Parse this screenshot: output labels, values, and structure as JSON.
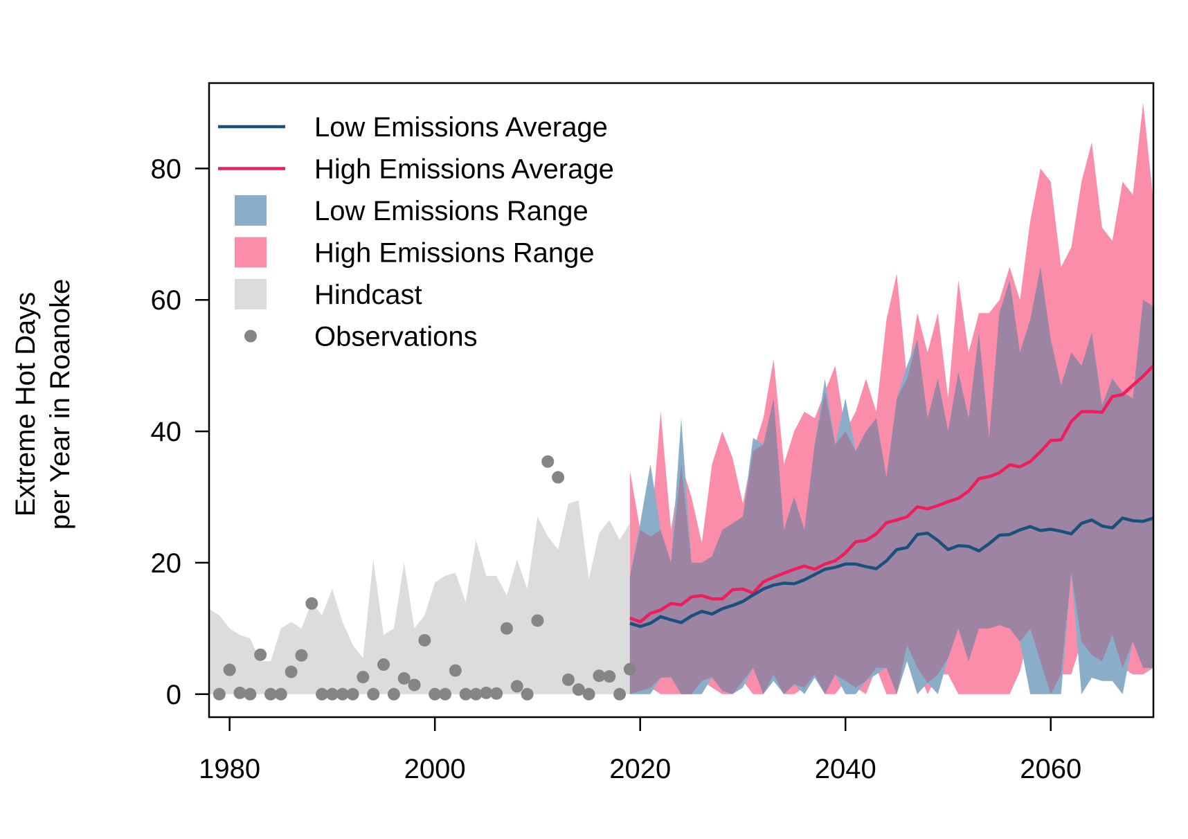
{
  "chart_data": {
    "type": "line",
    "title": "",
    "xlabel": "",
    "ylabel_lines": [
      "Extreme Hot Days",
      "per Year in Roanoke"
    ],
    "xlim": [
      1978,
      2070
    ],
    "ylim": [
      -3.5,
      93
    ],
    "x_ticks": [
      1980,
      2000,
      2020,
      2040,
      2060
    ],
    "x_tick_labels": [
      "1980",
      "2000",
      "2020",
      "2040",
      "2060"
    ],
    "y_ticks": [
      0,
      20,
      40,
      60,
      80
    ],
    "y_tick_labels": [
      "0",
      "20",
      "40",
      "60",
      "80"
    ],
    "grid": false,
    "legend_position": "top-left",
    "colors": {
      "low_average": "#1b4f7c",
      "high_average": "#ef1d5a",
      "low_range": "#8aadc9",
      "high_range": "#fa8eaa",
      "overlap_range": "#9d84a3",
      "hindcast": "#dcdcdc",
      "observations": "#858585"
    },
    "legend": [
      {
        "label": "Low Emissions Average",
        "kind": "line",
        "series": "low_average"
      },
      {
        "label": "High Emissions Average",
        "kind": "line",
        "series": "high_average"
      },
      {
        "label": "Low Emissions Range",
        "kind": "box",
        "series": "low_range"
      },
      {
        "label": "High Emissions Range",
        "kind": "box",
        "series": "high_range"
      },
      {
        "label": "Hindcast",
        "kind": "box",
        "series": "hindcast"
      },
      {
        "label": "Observations",
        "kind": "point",
        "series": "observations"
      }
    ],
    "hindcast": {
      "x": [
        1978,
        1979,
        1980,
        1981,
        1982,
        1983,
        1984,
        1985,
        1986,
        1987,
        1988,
        1989,
        1990,
        1991,
        1992,
        1993,
        1994,
        1995,
        1996,
        1997,
        1998,
        1999,
        2000,
        2001,
        2002,
        2003,
        2004,
        2005,
        2006,
        2007,
        2008,
        2009,
        2010,
        2011,
        2012,
        2013,
        2014,
        2015,
        2016,
        2017,
        2018,
        2019
      ],
      "upper": [
        13,
        12,
        10,
        9,
        8.5,
        5,
        5,
        10,
        11,
        10,
        14,
        12,
        16,
        11,
        7.5,
        5.5,
        20.5,
        9,
        10,
        20,
        10,
        12,
        17,
        18,
        18.5,
        14,
        23.5,
        18,
        18,
        15,
        20.5,
        16,
        27,
        24,
        22,
        29,
        29.5,
        17.5,
        24.5,
        26.5,
        23.5,
        26
      ],
      "lower": [
        0,
        0,
        0,
        0,
        0,
        0,
        0,
        0,
        0,
        0,
        0,
        0,
        0,
        0,
        0,
        0,
        0,
        0,
        0,
        0,
        0,
        0,
        0,
        0,
        0,
        0,
        0,
        0,
        0,
        0,
        0,
        0,
        0,
        0,
        0,
        0,
        0,
        0,
        0,
        0,
        0,
        0
      ]
    },
    "observations": {
      "x": [
        1979,
        1980,
        1981,
        1982,
        1983,
        1984,
        1985,
        1986,
        1987,
        1988,
        1989,
        1990,
        1991,
        1992,
        1993,
        1994,
        1995,
        1996,
        1997,
        1998,
        1999,
        2000,
        2001,
        2002,
        2003,
        2004,
        2005,
        2006,
        2007,
        2008,
        2009,
        2010,
        2011,
        2012,
        2013,
        2014,
        2015,
        2016,
        2017,
        2018,
        2019
      ],
      "y": [
        0,
        3.7,
        0.2,
        0,
        6,
        0,
        0,
        3.4,
        5.9,
        13.8,
        0,
        0,
        0,
        0,
        2.6,
        0,
        4.5,
        0,
        2.4,
        1.4,
        8.2,
        0,
        0,
        3.6,
        0,
        0,
        0.2,
        0.1,
        10,
        1.2,
        0,
        11.2,
        35.4,
        33,
        2.2,
        0.7,
        0,
        2.8,
        2.7,
        0,
        3.8
      ]
    },
    "low_range": {
      "x": [
        2019,
        2020,
        2021,
        2022,
        2023,
        2024,
        2025,
        2026,
        2027,
        2028,
        2029,
        2030,
        2031,
        2032,
        2033,
        2034,
        2035,
        2036,
        2037,
        2038,
        2039,
        2040,
        2041,
        2042,
        2043,
        2044,
        2045,
        2046,
        2047,
        2048,
        2049,
        2050,
        2051,
        2052,
        2053,
        2054,
        2055,
        2056,
        2057,
        2058,
        2059,
        2060,
        2061,
        2062,
        2063,
        2064,
        2065,
        2066,
        2067,
        2068,
        2069,
        2070
      ],
      "upper": [
        18,
        26,
        35,
        25,
        20,
        42,
        20,
        20,
        21,
        25,
        26,
        27,
        39,
        38,
        45,
        25,
        30,
        25,
        38,
        48,
        38,
        45,
        37,
        40,
        42,
        33,
        45,
        50,
        54,
        42,
        48,
        40,
        49,
        42,
        55,
        39,
        58,
        63,
        52,
        57,
        65,
        54,
        47,
        52,
        50,
        55,
        44,
        48,
        46,
        45,
        60,
        59
      ],
      "lower": [
        0,
        0,
        0,
        2.5,
        2.6,
        0,
        0,
        0,
        2.6,
        0.5,
        0,
        1,
        4,
        0,
        2,
        0,
        1.5,
        0,
        2.5,
        0,
        3,
        0,
        0,
        2,
        3,
        4,
        0,
        5,
        0,
        1.7,
        0,
        5.5,
        10,
        5,
        10,
        10,
        10.5,
        10,
        8,
        0,
        0,
        0,
        0,
        18.5,
        0,
        2.5,
        2,
        2,
        0,
        8,
        4,
        4
      ]
    },
    "high_range": {
      "x": [
        2019,
        2020,
        2021,
        2022,
        2023,
        2024,
        2025,
        2026,
        2027,
        2028,
        2029,
        2030,
        2031,
        2032,
        2033,
        2034,
        2035,
        2036,
        2037,
        2038,
        2039,
        2040,
        2041,
        2042,
        2043,
        2044,
        2045,
        2046,
        2047,
        2048,
        2049,
        2050,
        2051,
        2052,
        2053,
        2054,
        2055,
        2056,
        2057,
        2058,
        2059,
        2060,
        2061,
        2062,
        2063,
        2064,
        2065,
        2066,
        2067,
        2068,
        2069,
        2070
      ],
      "upper": [
        34,
        25,
        24,
        43,
        25,
        35,
        30,
        23,
        35,
        40,
        36,
        29,
        37,
        42,
        51,
        35,
        40,
        43,
        42,
        46,
        50,
        40,
        43,
        48,
        43,
        57,
        64,
        48,
        58,
        52,
        58,
        45,
        63,
        52,
        58,
        58,
        60,
        65,
        60,
        72,
        80,
        78,
        65,
        68,
        78,
        84,
        71,
        69,
        78,
        76,
        90,
        75
      ],
      "lower": [
        0,
        0.5,
        1,
        0,
        0,
        0,
        0,
        2,
        1,
        0,
        0,
        2,
        0,
        0,
        3,
        0,
        0,
        1,
        3,
        0,
        0,
        2,
        1,
        0,
        4,
        0,
        0,
        7.5,
        4,
        0,
        3,
        3,
        0,
        0,
        0,
        0,
        0,
        0,
        3.5,
        10,
        5,
        0,
        3,
        3,
        8,
        6,
        5,
        9,
        4,
        3,
        3,
        4
      ]
    },
    "low_average": {
      "x": [
        2019,
        2020,
        2021,
        2022,
        2023,
        2024,
        2025,
        2026,
        2027,
        2028,
        2029,
        2030,
        2031,
        2032,
        2033,
        2034,
        2035,
        2036,
        2037,
        2038,
        2039,
        2040,
        2041,
        2042,
        2043,
        2044,
        2045,
        2046,
        2047,
        2048,
        2049,
        2050,
        2051,
        2052,
        2053,
        2054,
        2055,
        2056,
        2057,
        2058,
        2059,
        2060,
        2061,
        2062,
        2063,
        2064,
        2065,
        2066,
        2067,
        2068,
        2069,
        2070
      ],
      "y": [
        10.8,
        10.3,
        10.8,
        11.8,
        11.3,
        10.9,
        11.9,
        12.6,
        12.2,
        13,
        13.5,
        14.1,
        15.1,
        16,
        16.6,
        16.9,
        16.8,
        17.4,
        18.2,
        19,
        19.3,
        19.8,
        19.8,
        19.4,
        19.1,
        20.3,
        22,
        22.3,
        24.3,
        24.5,
        23.4,
        22,
        22.6,
        22.5,
        21.8,
        22.9,
        24.2,
        24.3,
        25,
        25.5,
        24.9,
        25.1,
        24.8,
        24.4,
        26,
        26.5,
        25.6,
        25.3,
        26.8,
        26.4,
        26.3,
        26.8
      ]
    },
    "high_average": {
      "x": [
        2019,
        2020,
        2021,
        2022,
        2023,
        2024,
        2025,
        2026,
        2027,
        2028,
        2029,
        2030,
        2031,
        2032,
        2033,
        2034,
        2035,
        2036,
        2037,
        2038,
        2039,
        2040,
        2041,
        2042,
        2043,
        2044,
        2045,
        2046,
        2047,
        2048,
        2049,
        2050,
        2051,
        2052,
        2053,
        2054,
        2055,
        2056,
        2057,
        2058,
        2059,
        2060,
        2061,
        2062,
        2063,
        2064,
        2065,
        2066,
        2067,
        2068,
        2069,
        2070
      ],
      "y": [
        11.6,
        11,
        12.3,
        12.8,
        13.8,
        13.6,
        14.8,
        15,
        14.5,
        14.5,
        15.9,
        16,
        15.4,
        17.1,
        17.8,
        18.4,
        19,
        19.5,
        19,
        19.8,
        20.3,
        21.5,
        23.2,
        23.4,
        24.4,
        26.1,
        26.5,
        27,
        28.5,
        28.2,
        28.7,
        29.3,
        29.8,
        30.9,
        32.8,
        33.1,
        33.7,
        34.9,
        34.6,
        35.4,
        36.9,
        38.6,
        38.7,
        41.5,
        43,
        43,
        42.9,
        45.3,
        45.6,
        47,
        48.4,
        50
      ]
    }
  }
}
